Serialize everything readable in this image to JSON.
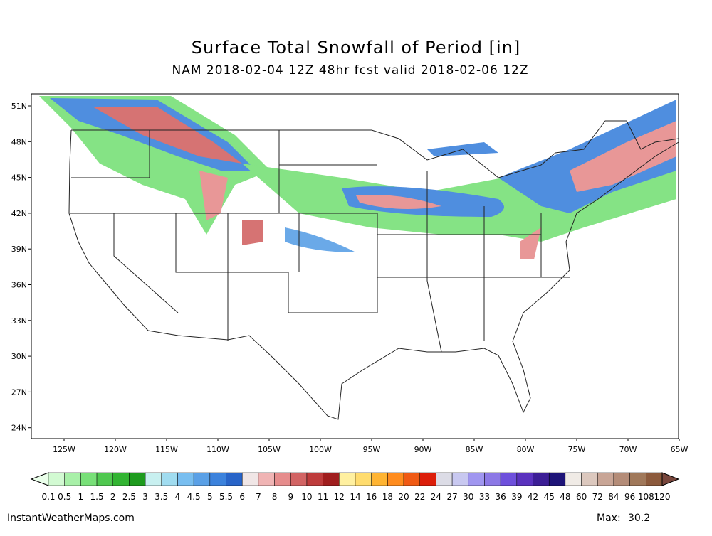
{
  "header": {
    "title": "Surface Total Snowfall of Period [in]",
    "subtitle": "NAM 2018-02-04 12Z 48hr fcst valid 2018-02-06 12Z"
  },
  "map": {
    "lat_labels": [
      "51N",
      "48N",
      "45N",
      "42N",
      "39N",
      "36N",
      "33N",
      "30N",
      "27N",
      "24N"
    ],
    "lon_labels": [
      "125W",
      "120W",
      "115W",
      "110W",
      "105W",
      "100W",
      "95W",
      "90W",
      "85W",
      "80W",
      "75W",
      "70W",
      "65W"
    ]
  },
  "colorbar": {
    "labels": [
      0.1,
      0.5,
      1,
      1.5,
      2,
      2.5,
      3,
      3.5,
      4,
      4.5,
      5,
      5.5,
      6,
      7,
      8,
      9,
      10,
      11,
      12,
      14,
      16,
      18,
      20,
      22,
      24,
      27,
      30,
      33,
      36,
      39,
      42,
      45,
      48,
      60,
      72,
      84,
      96,
      108,
      120
    ],
    "colors": [
      "#eaffea",
      "#d2fad2",
      "#a8f0a8",
      "#78e078",
      "#50c850",
      "#32b432",
      "#1e9b1e",
      "#c8f0f0",
      "#a0dcf0",
      "#78bef0",
      "#5aa0e6",
      "#3c82dc",
      "#2864c8",
      "#f0e6e6",
      "#f0b4b4",
      "#e68c8c",
      "#d26464",
      "#be3c3c",
      "#a01e1e",
      "#fff0a0",
      "#ffdc6e",
      "#ffb432",
      "#ff8c1e",
      "#f05a14",
      "#dc1e0a",
      "#dcdce6",
      "#c8c8f0",
      "#a096f0",
      "#8c78e6",
      "#6e50dc",
      "#5a32be",
      "#3c1e96",
      "#1e1478",
      "#f0ebe6",
      "#dcc8be",
      "#c8a596",
      "#b48c78",
      "#a0785a",
      "#8c5a3c",
      "#78463c"
    ]
  },
  "footer": {
    "source": "InstantWeatherMaps.com",
    "max_label": "Max:",
    "max_value": "30.2"
  }
}
